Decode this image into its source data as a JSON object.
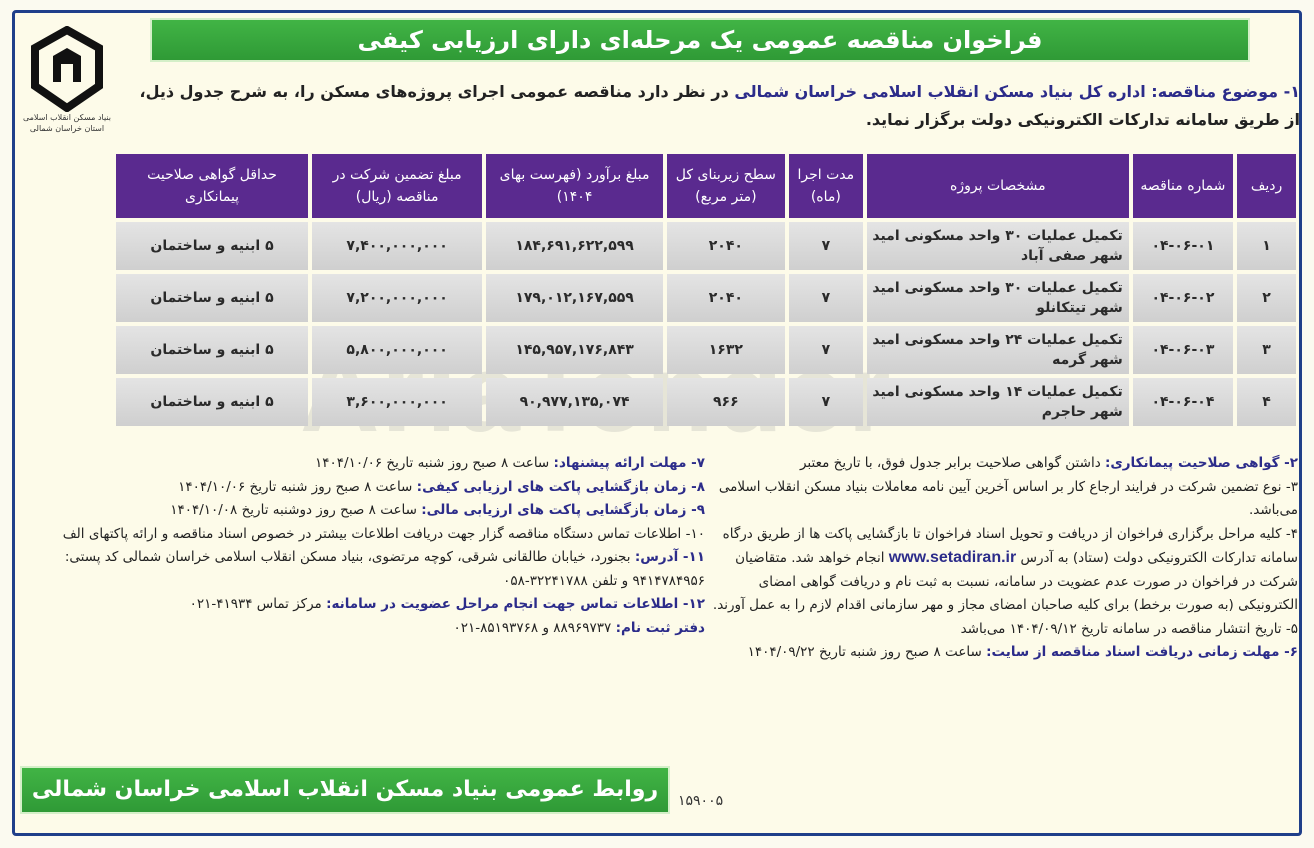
{
  "title": "فراخوان مناقصه عمومی یک مرحله‌ای دارای ارزیابی کیفی",
  "logo": {
    "text": "بنیاد مسکن انقلاب اسلامی استان خراسان شمالی",
    "icon": "bonyad-maskan-logo"
  },
  "intro": {
    "label": "۱- موضوع مناقصه:",
    "org": "اداره کل بنیاد مسکن انقلاب اسلامی خراسان شمالی",
    "text": "در نظر دارد مناقصه عمومی اجرای پروژه‌های مسکن را، به شرح جدول ذیل، از طریق سامانه تدارکات الکترونیکی دولت برگزار نماید."
  },
  "table": {
    "headers": [
      "ردیف",
      "شماره مناقصه",
      "مشخصات پروژه",
      "مدت اجرا (ماه)",
      "سطح زیربنای کل (متر مربع)",
      "مبلغ برآورد (فهرست بهای ۱۴۰۴)",
      "مبلغ تضمین شرکت در مناقصه (ریال)",
      "حداقل گواهی صلاحیت پیمانکاری"
    ],
    "rows": [
      [
        "۱",
        "۰۴-۰۶-۰۱",
        "تکمیل عملیات ۳۰ واحد مسکونی امید شهر صفی آباد",
        "۷",
        "۲۰۴۰",
        "۱۸۴,۶۹۱,۶۲۲,۵۹۹",
        "۷,۴۰۰,۰۰۰,۰۰۰",
        "۵ ابنیه و ساختمان"
      ],
      [
        "۲",
        "۰۴-۰۶-۰۲",
        "تکمیل عملیات ۳۰ واحد مسکونی امید شهر تیتکانلو",
        "۷",
        "۲۰۴۰",
        "۱۷۹,۰۱۲,۱۶۷,۵۵۹",
        "۷,۲۰۰,۰۰۰,۰۰۰",
        "۵ ابنیه و ساختمان"
      ],
      [
        "۳",
        "۰۴-۰۶-۰۳",
        "تکمیل عملیات ۲۴ واحد مسکونی امید شهر گرمه",
        "۷",
        "۱۶۳۲",
        "۱۴۵,۹۵۷,۱۷۶,۸۴۳",
        "۵,۸۰۰,۰۰۰,۰۰۰",
        "۵ ابنیه و ساختمان"
      ],
      [
        "۴",
        "۰۴-۰۶-۰۴",
        "تکمیل عملیات ۱۴ واحد مسکونی امید شهر حاجرم",
        "۷",
        "۹۶۶",
        "۹۰,۹۷۷,۱۳۵,۰۷۴",
        "۳,۶۰۰,۰۰۰,۰۰۰",
        "۵ ابنیه و ساختمان"
      ]
    ]
  },
  "items_right": [
    {
      "label": "۲- گواهی صلاحیت پیمانکاری:",
      "text": "داشتن گواهی صلاحیت برابر جدول فوق، با تاریخ معتبر"
    },
    {
      "label": "",
      "text": "۳- نوع تضمین شرکت در فرایند ارجاع کار بر اساس آخرین آیین نامه معاملات بنیاد مسکن انقلاب اسلامی می‌باشد."
    },
    {
      "label": "",
      "text": "۴- کلیه مراحل برگزاری فراخوان از دریافت و تحویل اسناد فراخوان تا بازگشایی پاکت ها از طریق درگاه سامانه تدارکات الکترونیکی دولت (ستاد) به آدرس",
      "link": "www.setadiran.ir",
      "text2": "انجام خواهد شد. متقاضیان شرکت در فراخوان در صورت عدم عضویت در سامانه، نسبت به ثبت نام و دریافت گواهی امضای الکترونیکی (به صورت برخط) برای کلیه صاحبان امضای مجاز و مهر سازمانی اقدام لازم را به عمل آورند."
    },
    {
      "label": "",
      "text": "۵- تاریخ انتشار مناقصه در سامانه تاریخ ۱۴۰۴/۰۹/۱۲ می‌باشد"
    },
    {
      "label": "۶- مهلت زمانی دریافت اسناد مناقصه از سایت:",
      "text": "ساعت ۸ صبح روز شنبه تاریخ ۱۴۰۴/۰۹/۲۲"
    }
  ],
  "items_left": [
    {
      "label": "۷- مهلت ارائه پیشنهاد:",
      "text": "ساعت ۸ صبح روز شنبه تاریخ ۱۴۰۴/۱۰/۰۶"
    },
    {
      "label": "۸- زمان بازگشایی پاکت های ارزیابی کیفی:",
      "text": "ساعت ۸ صبح روز شنبه تاریخ ۱۴۰۴/۱۰/۰۶"
    },
    {
      "label": "۹- زمان بازگشایی پاکت های ارزیابی مالی:",
      "text": "ساعت ۸ صبح روز دوشنبه تاریخ ۱۴۰۴/۱۰/۰۸"
    },
    {
      "label": "",
      "text": "۱۰- اطلاعات تماس دستگاه مناقصه گزار جهت دریافت اطلاعات بیشتر در خصوص اسناد مناقصه و ارائه پاکتهای الف"
    },
    {
      "label": "۱۱- آدرس:",
      "text": "بجنورد، خیابان طالقانی شرقی، کوچه مرتضوی، بنیاد مسکن انقلاب اسلامی خراسان شمالی کد پستی: ۹۴۱۴۷۸۴۹۵۶ و تلفن ۳۲۲۴۱۷۸۸-۰۵۸"
    },
    {
      "label": "۱۲- اطلاعات تماس جهت انجام مراحل عضویت در سامانه:",
      "text": "مرکز تماس ۴۱۹۳۴-۰۲۱"
    },
    {
      "label": "دفتر ثبت نام:",
      "text": "۸۸۹۶۹۷۳۷ و ۸۵۱۹۳۷۶۸-۰۲۱"
    }
  ],
  "footer": {
    "text": "روابط عمومی بنیاد مسکن انقلاب اسلامی خراسان شمالی",
    "code": "۱۵۹۰۰۵"
  },
  "watermark": "AriaTender",
  "colors": {
    "green": "#35a63a",
    "purple": "#5a2a8f",
    "frame": "#1f3f8a",
    "label": "#2c2c8a"
  }
}
